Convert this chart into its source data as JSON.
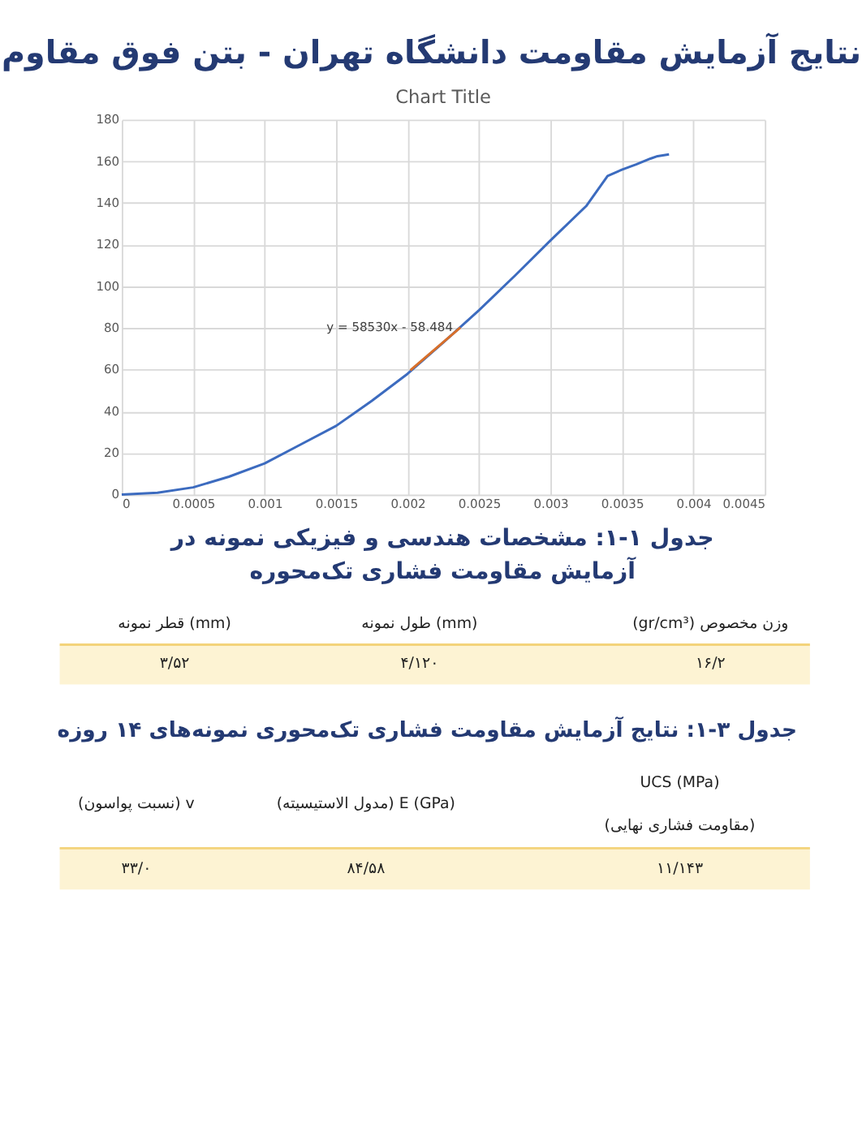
{
  "chart_data": {
    "type": "line",
    "title": "نتایج آزمایش مقاومت دانشگاه تهران - بتن فوق مقاوم",
    "subtitle": "Chart Title",
    "xlim": [
      0,
      0.0045
    ],
    "xticks": [
      0,
      0.0005,
      0.001,
      0.0015,
      0.002,
      0.0025,
      0.003,
      0.0035,
      0.004,
      0.0045
    ],
    "ylim": [
      0,
      180
    ],
    "yticks": [
      0,
      20,
      40,
      60,
      80,
      100,
      120,
      140,
      160,
      180
    ],
    "grid": true,
    "series": [
      {
        "color": "#3c6bbf",
        "x": [
          0,
          0.00025,
          0.0005,
          0.00075,
          0.001,
          0.00125,
          0.0015,
          0.00175,
          0.002,
          0.00225,
          0.0025,
          0.00275,
          0.003,
          0.00325,
          0.0034,
          0.0035,
          0.0036,
          0.0037,
          0.00375,
          0.00383
        ],
        "values": [
          0,
          0.9,
          3.5,
          8.6,
          15,
          24,
          33,
          45,
          58,
          73,
          88.5,
          105,
          122,
          138.5,
          153,
          156,
          158.5,
          161.3,
          162.5,
          163.3
        ]
      },
      {
        "type": "line",
        "color": "#d86f2a",
        "x": [
          0.00202,
          0.00237
        ],
        "values": [
          59.7,
          80.2
        ]
      }
    ],
    "annotations": [
      "y = 58530x - 58.484",
      "جدول ۱-۱: مشخصات هندسی و فیزیکی نمونه در",
      "آزمایش مقاومت فشاری تک‌محوره",
      "(gr/cm³) وزن مخصوص",
      "طول نمونه (mm)",
      "قطر نمونه (mm)",
      "۱۶/۲",
      "۴/۱۲۰",
      "۳/۵۲",
      "جدول ۳-۱: نتایج آزمایش مقاومت فشاری تک‌محوری نمونه‌های ۱۴ روزه",
      "UCS (MPa)",
      "(مقاومت فشاری نهایی)",
      "(مدول الاستیسیته) E (GPa)",
      "(نسبت پواسون) v",
      "۱۱/۱۴۳",
      "۸۴/۵۸",
      "۳۳/۰"
    ]
  }
}
